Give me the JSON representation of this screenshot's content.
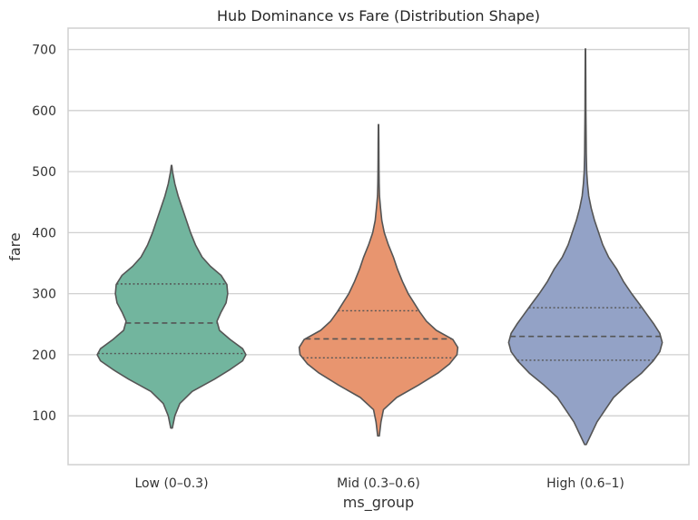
{
  "chart_data": {
    "type": "violin",
    "title": "Hub Dominance vs Fare (Distribution Shape)",
    "xlabel": "ms_group",
    "ylabel": "fare",
    "categories": [
      "Low (0–0.3)",
      "Mid (0.3–0.6)",
      "High (0.6–1)"
    ],
    "ylim": [
      20,
      735
    ],
    "yticks": [
      100,
      200,
      300,
      400,
      500,
      600,
      700
    ],
    "grid": "horizontal",
    "legend": "none",
    "colors": [
      "#72b59e",
      "#e8956f",
      "#93a2c6"
    ],
    "edge_color": "#555555",
    "grid_color": "#d0d0d0",
    "violins": [
      {
        "category": "Low (0–0.3)",
        "min": 80,
        "max": 510,
        "q1": 202,
        "median": 252,
        "q3": 316,
        "profile": [
          [
            80,
            0.01
          ],
          [
            100,
            0.04
          ],
          [
            120,
            0.1
          ],
          [
            140,
            0.25
          ],
          [
            160,
            0.52
          ],
          [
            175,
            0.7
          ],
          [
            190,
            0.86
          ],
          [
            200,
            0.9
          ],
          [
            210,
            0.86
          ],
          [
            225,
            0.71
          ],
          [
            240,
            0.58
          ],
          [
            255,
            0.55
          ],
          [
            270,
            0.6
          ],
          [
            285,
            0.66
          ],
          [
            300,
            0.68
          ],
          [
            315,
            0.67
          ],
          [
            330,
            0.6
          ],
          [
            345,
            0.47
          ],
          [
            360,
            0.37
          ],
          [
            380,
            0.29
          ],
          [
            400,
            0.23
          ],
          [
            420,
            0.18
          ],
          [
            440,
            0.13
          ],
          [
            460,
            0.08
          ],
          [
            480,
            0.04
          ],
          [
            500,
            0.012
          ],
          [
            510,
            0.003
          ]
        ]
      },
      {
        "category": "Mid (0.3–0.6)",
        "min": 67,
        "max": 577,
        "q1": 195,
        "median": 226,
        "q3": 272,
        "profile": [
          [
            67,
            0.01
          ],
          [
            90,
            0.03
          ],
          [
            110,
            0.06
          ],
          [
            130,
            0.22
          ],
          [
            150,
            0.48
          ],
          [
            170,
            0.72
          ],
          [
            185,
            0.86
          ],
          [
            200,
            0.95
          ],
          [
            212,
            0.96
          ],
          [
            225,
            0.9
          ],
          [
            240,
            0.7
          ],
          [
            255,
            0.58
          ],
          [
            270,
            0.5
          ],
          [
            285,
            0.43
          ],
          [
            300,
            0.36
          ],
          [
            320,
            0.29
          ],
          [
            340,
            0.23
          ],
          [
            360,
            0.18
          ],
          [
            380,
            0.12
          ],
          [
            400,
            0.07
          ],
          [
            420,
            0.04
          ],
          [
            440,
            0.025
          ],
          [
            460,
            0.012
          ],
          [
            480,
            0.008
          ],
          [
            500,
            0.006
          ],
          [
            520,
            0.005
          ],
          [
            550,
            0.004
          ],
          [
            577,
            0.002
          ]
        ]
      },
      {
        "category": "High (0.6–1)",
        "min": 53,
        "max": 701,
        "q1": 191,
        "median": 230,
        "q3": 277,
        "profile": [
          [
            53,
            0.01
          ],
          [
            70,
            0.07
          ],
          [
            90,
            0.14
          ],
          [
            110,
            0.24
          ],
          [
            130,
            0.34
          ],
          [
            150,
            0.5
          ],
          [
            170,
            0.68
          ],
          [
            190,
            0.82
          ],
          [
            205,
            0.9
          ],
          [
            220,
            0.93
          ],
          [
            235,
            0.9
          ],
          [
            250,
            0.83
          ],
          [
            265,
            0.75
          ],
          [
            280,
            0.67
          ],
          [
            300,
            0.56
          ],
          [
            320,
            0.46
          ],
          [
            340,
            0.38
          ],
          [
            360,
            0.28
          ],
          [
            380,
            0.21
          ],
          [
            400,
            0.16
          ],
          [
            420,
            0.11
          ],
          [
            440,
            0.07
          ],
          [
            460,
            0.04
          ],
          [
            480,
            0.025
          ],
          [
            500,
            0.015
          ],
          [
            530,
            0.01
          ],
          [
            560,
            0.008
          ],
          [
            600,
            0.005
          ],
          [
            650,
            0.004
          ],
          [
            701,
            0.002
          ]
        ]
      }
    ]
  }
}
